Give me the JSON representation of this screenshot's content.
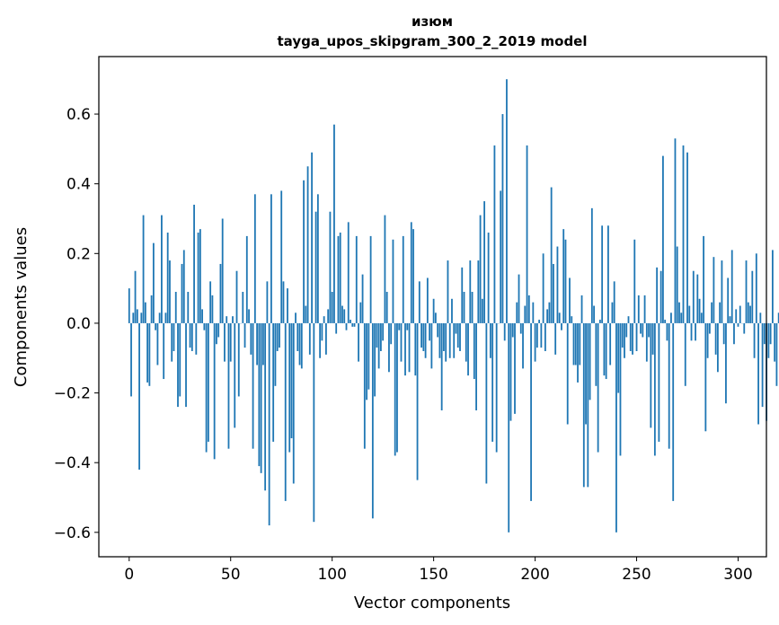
{
  "chart_data": {
    "type": "bar",
    "title": "изюм",
    "subtitle": "tayga_upos_skipgram_300_2_2019 model",
    "xlabel": "Vector components",
    "ylabel": "Components values",
    "xlim": [
      -14.95,
      313.95
    ],
    "ylim": [
      -0.67,
      0.765
    ],
    "x_ticks": [
      0,
      50,
      100,
      150,
      200,
      250,
      300
    ],
    "x_tick_labels": [
      "0",
      "50",
      "100",
      "150",
      "200",
      "250",
      "300"
    ],
    "y_ticks": [
      -0.6,
      -0.4,
      -0.2,
      0.0,
      0.2,
      0.4,
      0.6
    ],
    "y_tick_labels": [
      "−0.6",
      "−0.4",
      "−0.2",
      "0.0",
      "0.2",
      "0.4",
      "0.6"
    ],
    "bar_color": "#1f77b4",
    "grid": false,
    "values": [
      0.1,
      -0.21,
      0.03,
      0.15,
      0.04,
      -0.42,
      0.03,
      0.31,
      0.06,
      -0.17,
      -0.18,
      0.08,
      0.23,
      -0.02,
      -0.12,
      0.03,
      0.31,
      -0.16,
      0.03,
      0.26,
      0.18,
      -0.11,
      -0.08,
      0.09,
      -0.24,
      -0.21,
      0.17,
      0.21,
      -0.24,
      0.09,
      -0.07,
      -0.08,
      0.34,
      -0.09,
      0.26,
      0.27,
      0.04,
      -0.02,
      -0.37,
      -0.34,
      0.12,
      0.08,
      -0.39,
      -0.06,
      -0.04,
      0.17,
      0.3,
      -0.11,
      0.02,
      -0.36,
      -0.11,
      0.02,
      -0.3,
      0.15,
      -0.21,
      0.0,
      0.09,
      -0.07,
      0.25,
      0.04,
      -0.09,
      -0.36,
      0.37,
      -0.12,
      -0.41,
      -0.43,
      -0.12,
      -0.48,
      0.12,
      -0.58,
      0.37,
      -0.34,
      -0.18,
      -0.08,
      -0.07,
      0.38,
      0.12,
      -0.51,
      0.1,
      -0.37,
      -0.33,
      -0.46,
      0.03,
      -0.08,
      -0.12,
      -0.13,
      0.41,
      0.05,
      0.45,
      -0.09,
      0.49,
      -0.57,
      0.32,
      0.37,
      -0.1,
      -0.05,
      0.02,
      -0.09,
      0.04,
      0.32,
      0.09,
      0.57,
      -0.03,
      0.25,
      0.26,
      0.05,
      0.04,
      -0.02,
      0.29,
      0.01,
      -0.01,
      -0.01,
      0.25,
      -0.11,
      0.06,
      0.14,
      -0.36,
      -0.22,
      -0.19,
      0.25,
      -0.56,
      -0.21,
      -0.07,
      -0.13,
      -0.08,
      -0.05,
      0.31,
      0.09,
      -0.14,
      -0.06,
      0.24,
      -0.38,
      -0.37,
      -0.02,
      -0.11,
      0.25,
      -0.15,
      -0.02,
      -0.14,
      0.29,
      0.27,
      -0.15,
      -0.45,
      0.12,
      -0.07,
      -0.08,
      -0.1,
      0.13,
      -0.05,
      -0.13,
      0.07,
      0.03,
      -0.04,
      -0.1,
      -0.25,
      -0.08,
      -0.11,
      0.18,
      -0.1,
      0.07,
      -0.1,
      -0.03,
      -0.07,
      -0.08,
      0.16,
      0.09,
      -0.11,
      -0.15,
      0.18,
      0.09,
      -0.16,
      -0.25,
      0.18,
      0.31,
      0.07,
      0.35,
      -0.46,
      0.26,
      -0.1,
      -0.34,
      0.51,
      -0.37,
      0.0,
      0.38,
      0.6,
      -0.05,
      0.7,
      -0.6,
      -0.28,
      -0.04,
      -0.26,
      0.06,
      0.14,
      -0.03,
      -0.13,
      0.05,
      0.51,
      0.08,
      -0.51,
      0.06,
      -0.11,
      -0.07,
      0.01,
      -0.07,
      0.2,
      -0.08,
      0.04,
      0.06,
      0.39,
      0.17,
      -0.09,
      0.22,
      0.03,
      -0.02,
      0.27,
      0.24,
      -0.29,
      0.13,
      0.02,
      -0.12,
      -0.12,
      -0.17,
      -0.12,
      0.08,
      -0.47,
      -0.29,
      -0.47,
      -0.22,
      0.33,
      0.05,
      -0.18,
      -0.37,
      0.01,
      0.28,
      -0.15,
      -0.16,
      0.28,
      -0.12,
      0.06,
      0.12,
      -0.6,
      -0.2,
      -0.38,
      -0.07,
      -0.1,
      -0.04,
      0.02,
      -0.08,
      -0.09,
      0.24,
      -0.08,
      0.08,
      -0.03,
      -0.04,
      0.08,
      -0.11,
      -0.04,
      -0.3,
      -0.09,
      -0.38,
      0.16,
      -0.34,
      0.15,
      0.48,
      0.01,
      -0.05,
      -0.36,
      0.03,
      -0.51,
      0.53,
      0.22,
      0.06,
      0.03,
      0.51,
      -0.18,
      0.49,
      0.05,
      -0.05,
      0.15,
      -0.05,
      0.14,
      0.07,
      0.03,
      0.25,
      -0.31,
      -0.1,
      -0.03,
      0.06,
      0.19,
      -0.09,
      -0.14,
      0.06,
      0.18,
      -0.06,
      -0.23,
      0.13,
      0.02,
      0.21,
      -0.06,
      0.04,
      -0.01,
      0.05,
      0.0,
      -0.03,
      0.18,
      0.06,
      0.05,
      0.15,
      -0.1,
      0.2,
      -0.29,
      0.03,
      -0.24,
      -0.06,
      -0.28,
      -0.1,
      -0.06,
      0.21,
      -0.11,
      -0.18,
      0.03,
      0.27,
      0.14,
      0.18,
      -0.19,
      -0.26,
      -0.08,
      0.1,
      0.02,
      0.3,
      0.01,
      -0.1,
      0.11,
      0.24,
      -0.06,
      -0.12,
      0.04,
      -0.14,
      0.15,
      0.0,
      -0.12,
      -0.26,
      0.09,
      -0.02,
      0.31,
      -0.13,
      0.11,
      -0.3,
      0.08,
      -0.05,
      -0.18,
      0.01,
      0.16,
      -0.02,
      -0.15,
      0.04,
      0.07,
      -0.05,
      0.05,
      0.12,
      -0.1,
      0.03,
      0.1,
      -0.07,
      0.02,
      -0.12,
      0.13,
      0.03,
      0.01
    ]
  }
}
